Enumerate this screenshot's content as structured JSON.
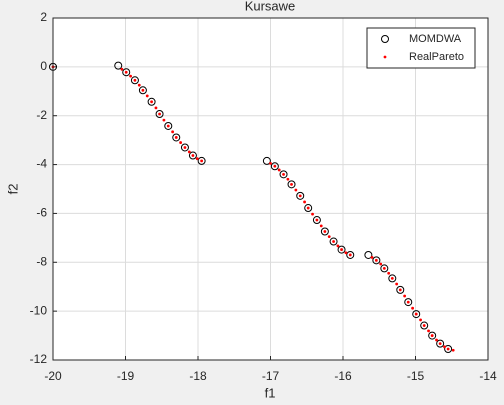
{
  "chart_data": {
    "type": "scatter",
    "title": "Kursawe",
    "x_label": "f1",
    "y_label": "f2",
    "xlim": [
      -20,
      -14
    ],
    "xticks": [
      -20,
      -19,
      -18,
      -17,
      -16,
      -15,
      -14
    ],
    "ylim": [
      -12,
      2
    ],
    "yticks": [
      -12,
      -10,
      -8,
      -6,
      -4,
      -2,
      0,
      2
    ],
    "grid": true,
    "legend": "top-right",
    "series": [
      {
        "name": "MOMDWA",
        "color": "#000000",
        "marker": "circle",
        "x": [
          -20,
          -19.1,
          -18.99,
          -18.87,
          -18.76,
          -18.64,
          -18.53,
          -18.41,
          -18.3,
          -18.18,
          -18.07,
          -17.95,
          -17.05,
          -16.94,
          -16.82,
          -16.71,
          -16.59,
          -16.48,
          -16.36,
          -16.25,
          -16.13,
          -16.02,
          -15.9,
          -15.65,
          -15.54,
          -15.43,
          -15.32,
          -15.21,
          -15.1,
          -14.99,
          -14.88,
          -14.77,
          -14.66,
          -14.55
        ],
        "values": [
          0,
          0.05,
          -0.22,
          -0.55,
          -0.96,
          -1.43,
          -1.93,
          -2.42,
          -2.89,
          -3.3,
          -3.63,
          -3.85,
          -3.85,
          -4.07,
          -4.4,
          -4.81,
          -5.28,
          -5.78,
          -6.27,
          -6.74,
          -7.15,
          -7.48,
          -7.7,
          -7.7,
          -7.92,
          -8.25,
          -8.66,
          -9.13,
          -9.63,
          -10.12,
          -10.59,
          -11,
          -11.33,
          -11.55
        ]
      },
      {
        "name": "RealPareto",
        "color": "#ff0000",
        "marker": "dot",
        "x": [
          -20,
          -19.05,
          -18.99,
          -18.93,
          -18.87,
          -18.81,
          -18.76,
          -18.7,
          -18.64,
          -18.58,
          -18.53,
          -18.47,
          -18.41,
          -18.35,
          -18.3,
          -18.24,
          -18.18,
          -18.12,
          -18.07,
          -18.01,
          -17.95,
          -17.0,
          -16.94,
          -16.88,
          -16.82,
          -16.76,
          -16.71,
          -16.65,
          -16.59,
          -16.53,
          -16.48,
          -16.42,
          -16.36,
          -16.3,
          -16.25,
          -16.19,
          -16.13,
          -16.07,
          -16.02,
          -15.96,
          -15.9,
          -15.6,
          -15.54,
          -15.48,
          -15.43,
          -15.37,
          -15.32,
          -15.26,
          -15.21,
          -15.15,
          -15.1,
          -15.04,
          -14.99,
          -14.93,
          -14.88,
          -14.82,
          -14.77,
          -14.71,
          -14.66,
          -14.6,
          -14.55,
          -14.48
        ],
        "values": [
          0,
          -0.1,
          -0.22,
          -0.38,
          -0.55,
          -0.75,
          -0.96,
          -1.19,
          -1.43,
          -1.68,
          -1.93,
          -2.18,
          -2.42,
          -2.66,
          -2.89,
          -3.1,
          -3.3,
          -3.48,
          -3.63,
          -3.76,
          -3.85,
          -3.95,
          -4.07,
          -4.22,
          -4.4,
          -4.6,
          -4.81,
          -5.04,
          -5.28,
          -5.53,
          -5.78,
          -6.03,
          -6.27,
          -6.51,
          -6.74,
          -6.95,
          -7.15,
          -7.33,
          -7.48,
          -7.61,
          -7.7,
          -7.8,
          -7.92,
          -8.07,
          -8.25,
          -8.45,
          -8.66,
          -8.89,
          -9.13,
          -9.38,
          -9.63,
          -9.88,
          -10.12,
          -10.36,
          -10.59,
          -10.81,
          -11,
          -11.18,
          -11.33,
          -11.46,
          -11.55,
          -11.6
        ]
      }
    ]
  }
}
